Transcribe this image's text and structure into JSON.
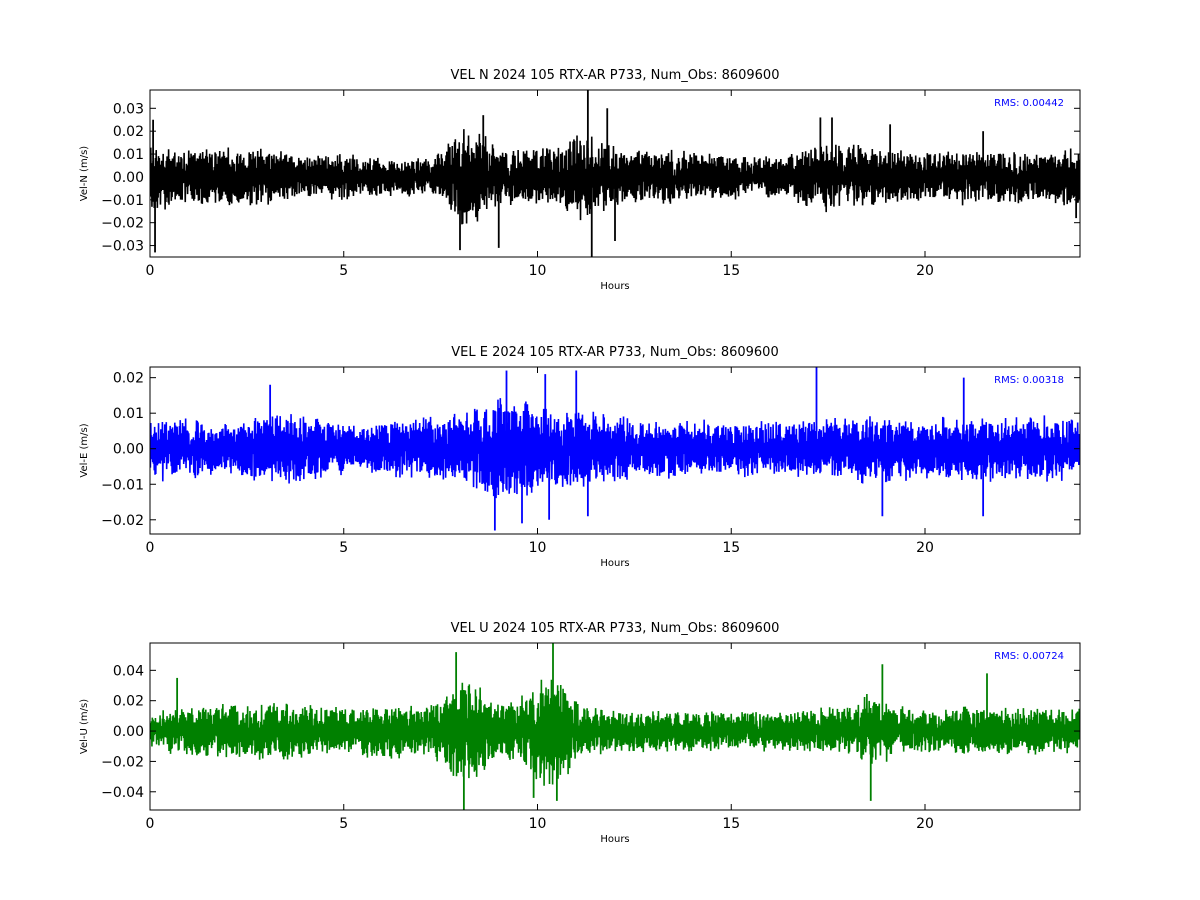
{
  "figure": {
    "background": "#ffffff"
  },
  "chart_data": [
    {
      "type": "line",
      "title": "VEL N 2024 105 RTX-AR  P733, Num_Obs: 8609600",
      "xlabel": "Hours",
      "ylabel": "Vel-N (m/s)",
      "xlim": [
        0,
        24
      ],
      "ylim": [
        -0.035,
        0.038
      ],
      "x_ticks": [
        0,
        5,
        10,
        15,
        20
      ],
      "x_tick_labels": [
        "0",
        "5",
        "10",
        "15",
        "20"
      ],
      "y_ticks": [
        -0.03,
        -0.02,
        -0.01,
        0.0,
        0.01,
        0.02,
        0.03
      ],
      "y_tick_labels": [
        "−0.03",
        "−0.02",
        "−0.01",
        "0.00",
        "0.01",
        "0.02",
        "0.03"
      ],
      "annotation": "RMS:  0.00442",
      "annotation_color": "#0000ff",
      "grid": false,
      "series": [
        {
          "color": "#000000",
          "seed": 11,
          "envelope": {
            "x": [
              0,
              0.5,
              1,
              2,
              3,
              4,
              5,
              6,
              7,
              7.5,
              8,
              8.5,
              9,
              9.5,
              10,
              10.5,
              11,
              11.5,
              12,
              12.5,
              13,
              14,
              15,
              16,
              16.5,
              17,
              17.5,
              18,
              19,
              20,
              21,
              22,
              23,
              24
            ],
            "y": [
              0.015,
              0.012,
              0.011,
              0.012,
              0.011,
              0.009,
              0.009,
              0.008,
              0.008,
              0.009,
              0.02,
              0.018,
              0.012,
              0.011,
              0.012,
              0.012,
              0.017,
              0.016,
              0.012,
              0.011,
              0.011,
              0.01,
              0.009,
              0.008,
              0.009,
              0.012,
              0.014,
              0.013,
              0.011,
              0.01,
              0.011,
              0.011,
              0.01,
              0.012
            ]
          },
          "spikes": [
            [
              0.08,
              0.025
            ],
            [
              0.13,
              -0.033
            ],
            [
              8.0,
              -0.032
            ],
            [
              8.6,
              0.027
            ],
            [
              9.0,
              -0.031
            ],
            [
              11.3,
              0.038
            ],
            [
              11.4,
              -0.035
            ],
            [
              11.8,
              0.03
            ],
            [
              12.0,
              -0.028
            ],
            [
              17.3,
              0.026
            ],
            [
              17.6,
              0.026
            ],
            [
              19.1,
              0.023
            ],
            [
              21.5,
              0.02
            ],
            [
              23.9,
              -0.018
            ]
          ]
        }
      ]
    },
    {
      "type": "line",
      "title": "VEL E 2024 105 RTX-AR  P733, Num_Obs: 8609600",
      "xlabel": "Hours",
      "ylabel": "Vel-E (m/s)",
      "xlim": [
        0,
        24
      ],
      "ylim": [
        -0.024,
        0.023
      ],
      "x_ticks": [
        0,
        5,
        10,
        15,
        20
      ],
      "x_tick_labels": [
        "0",
        "5",
        "10",
        "15",
        "20"
      ],
      "y_ticks": [
        -0.02,
        -0.01,
        0.0,
        0.01,
        0.02
      ],
      "y_tick_labels": [
        "−0.02",
        "−0.01",
        "0.00",
        "0.01",
        "0.02"
      ],
      "annotation": "RMS:  0.00318",
      "annotation_color": "#0000ff",
      "grid": false,
      "series": [
        {
          "color": "#0000ff",
          "seed": 23,
          "envelope": {
            "x": [
              0,
              1,
              2,
              3,
              4,
              5,
              5.5,
              6,
              7,
              8,
              8.5,
              9,
              9.5,
              10,
              10.5,
              11,
              11.5,
              12,
              13,
              14,
              15,
              16,
              17,
              18,
              19,
              20,
              21,
              22,
              23,
              24
            ],
            "y": [
              0.0085,
              0.0075,
              0.007,
              0.009,
              0.0085,
              0.007,
              0.006,
              0.0075,
              0.008,
              0.009,
              0.011,
              0.013,
              0.013,
              0.012,
              0.0105,
              0.011,
              0.01,
              0.0085,
              0.0075,
              0.0075,
              0.007,
              0.007,
              0.007,
              0.0085,
              0.009,
              0.0075,
              0.0085,
              0.008,
              0.0085,
              0.008
            ]
          },
          "spikes": [
            [
              3.1,
              0.018
            ],
            [
              8.9,
              -0.023
            ],
            [
              9.2,
              0.022
            ],
            [
              9.6,
              -0.021
            ],
            [
              10.2,
              0.021
            ],
            [
              10.3,
              -0.02
            ],
            [
              11.0,
              0.022
            ],
            [
              11.3,
              -0.019
            ],
            [
              17.2,
              0.023
            ],
            [
              18.9,
              -0.019
            ],
            [
              21.0,
              0.02
            ],
            [
              21.5,
              -0.019
            ]
          ]
        }
      ]
    },
    {
      "type": "line",
      "title": "VEL U 2024 105 RTX-AR  P733, Num_Obs: 8609600",
      "xlabel": "Hours",
      "ylabel": "Vel-U (m/s)",
      "xlim": [
        0,
        24
      ],
      "ylim": [
        -0.052,
        0.058
      ],
      "x_ticks": [
        0,
        5,
        10,
        15,
        20
      ],
      "x_tick_labels": [
        "0",
        "5",
        "10",
        "15",
        "20"
      ],
      "y_ticks": [
        -0.04,
        -0.02,
        0.0,
        0.02,
        0.04
      ],
      "y_tick_labels": [
        "−0.04",
        "−0.02",
        "0.00",
        "0.02",
        "0.04"
      ],
      "annotation": "RMS:  0.00724",
      "annotation_color": "#0000ff",
      "grid": false,
      "series": [
        {
          "color": "#008000",
          "seed": 37,
          "envelope": {
            "x": [
              0,
              1,
              2,
              3,
              4,
              5,
              6,
              7,
              7.5,
              8,
              8.5,
              9,
              9.5,
              10,
              10.5,
              11,
              11.5,
              12,
              13,
              14,
              15,
              16,
              17,
              18,
              18.5,
              19,
              19.5,
              20,
              21,
              22,
              23,
              24
            ],
            "y": [
              0.013,
              0.015,
              0.017,
              0.018,
              0.016,
              0.014,
              0.017,
              0.016,
              0.019,
              0.033,
              0.028,
              0.017,
              0.02,
              0.033,
              0.036,
              0.018,
              0.014,
              0.012,
              0.013,
              0.013,
              0.012,
              0.012,
              0.013,
              0.015,
              0.022,
              0.018,
              0.014,
              0.013,
              0.015,
              0.014,
              0.014,
              0.014
            ]
          },
          "spikes": [
            [
              0.7,
              0.035
            ],
            [
              7.9,
              0.052
            ],
            [
              8.1,
              -0.052
            ],
            [
              9.9,
              -0.044
            ],
            [
              10.4,
              0.058
            ],
            [
              10.5,
              -0.046
            ],
            [
              18.6,
              -0.046
            ],
            [
              18.9,
              0.044
            ],
            [
              21.6,
              0.038
            ]
          ]
        }
      ]
    }
  ]
}
